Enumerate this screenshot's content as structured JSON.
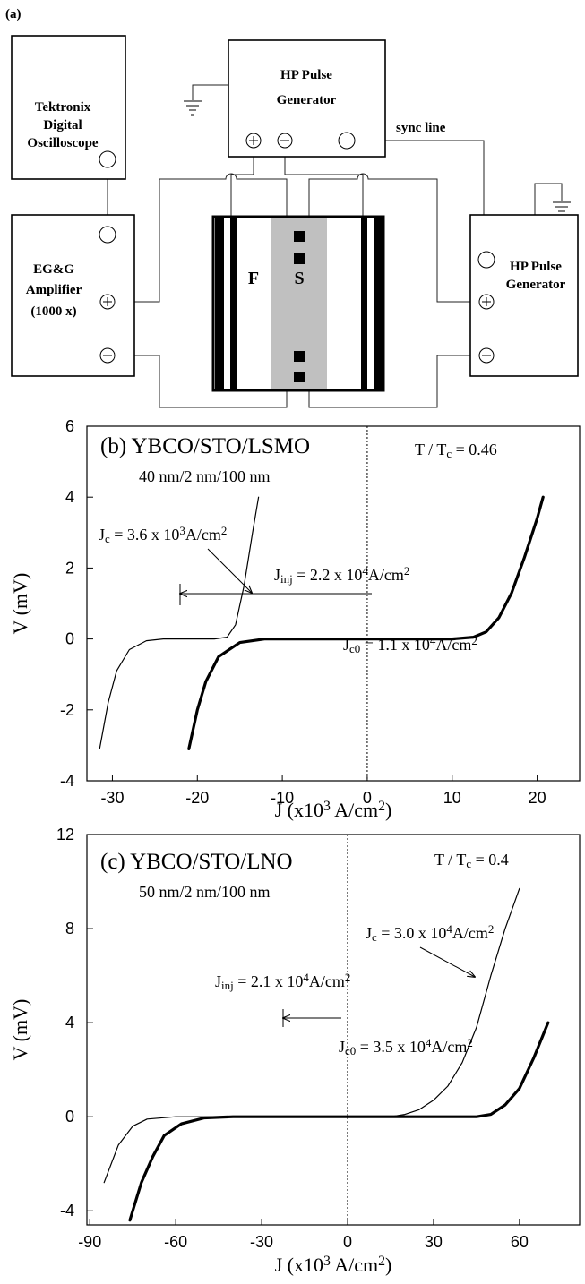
{
  "diagram": {
    "panel_label": "(a)",
    "oscilloscope": [
      "Tektronix",
      "Digital",
      "Oscilloscope"
    ],
    "pulse_generator_top": [
      "HP Pulse",
      "Generator"
    ],
    "sync_label": "sync line",
    "amplifier": [
      "EG&G",
      "Amplifier",
      "(1000 x)"
    ],
    "pulse_generator_right": [
      "HP Pulse",
      "Generator"
    ],
    "layer_f": "F",
    "layer_s": "S"
  },
  "chart_data": [
    {
      "type": "line",
      "title": "(b) YBCO/STO/LSMO",
      "subtitle": "40 nm/2 nm/100 nm",
      "ylabel": "V (mV)",
      "xlabel": {
        "parts": [
          "J (x10",
          "3",
          " A/cm",
          "2",
          ")"
        ],
        "styles": [
          "normal",
          "sup",
          "normal",
          "sup",
          "normal"
        ]
      },
      "xlim": [
        -33,
        25
      ],
      "xticks": [
        -30,
        -20,
        -10,
        0,
        10,
        20
      ],
      "ylim": [
        -4,
        6
      ],
      "yticks": [
        -4,
        -2,
        0,
        2,
        4,
        6
      ],
      "annotations": [
        {
          "parts": [
            "T / T",
            "c",
            " = 0.46"
          ],
          "styles": [
            "normal",
            "sub",
            "normal"
          ]
        },
        {
          "parts": [
            "J",
            "c",
            " = 3.6 x 10",
            "3",
            "A/cm",
            "2"
          ],
          "styles": [
            "normal",
            "sub",
            "normal",
            "sup",
            "normal",
            "sup"
          ]
        },
        {
          "parts": [
            "J",
            "inj",
            " = 2.2 x 10",
            "4",
            "A/cm",
            "2"
          ],
          "styles": [
            "normal",
            "sub",
            "normal",
            "sup",
            "normal",
            "sup"
          ]
        },
        {
          "parts": [
            "J",
            "c0",
            " = 1.1 x 10",
            "4",
            "A/cm",
            "2"
          ],
          "styles": [
            "normal",
            "sub",
            "normal",
            "sup",
            "normal",
            "sup"
          ]
        }
      ],
      "series": [
        {
          "color": "#000000",
          "line_width": 1.2,
          "x": [
            -31.5,
            -30.5,
            -29.5,
            -28,
            -26,
            -24,
            -18,
            -16.5,
            -15.5,
            -14.5,
            -13.5,
            -12.8
          ],
          "values": [
            -3.1,
            -1.8,
            -0.9,
            -0.3,
            -0.05,
            0,
            0,
            0.05,
            0.4,
            1.5,
            3,
            4
          ]
        },
        {
          "color": "#000000",
          "line_width": 3.2,
          "x": [
            -21,
            -20,
            -19,
            -17.5,
            -15,
            -12,
            10,
            12.5,
            14,
            15.5,
            17,
            18.5,
            20,
            20.7
          ],
          "values": [
            -3.1,
            -2,
            -1.2,
            -0.5,
            -0.1,
            0,
            0,
            0.05,
            0.2,
            0.6,
            1.3,
            2.3,
            3.4,
            4
          ]
        }
      ]
    },
    {
      "type": "line",
      "title": "(c) YBCO/STO/LNO",
      "subtitle": "50 nm/2 nm/100 nm",
      "ylabel": "V (mV)",
      "xlabel": {
        "parts": [
          "J (x10",
          "3",
          " A/cm",
          "2",
          ")"
        ],
        "styles": [
          "normal",
          "sup",
          "normal",
          "sup",
          "normal"
        ]
      },
      "xlim": [
        -91,
        81
      ],
      "xticks": [
        -90,
        -60,
        -30,
        0,
        30,
        60
      ],
      "ylim": [
        -4.6,
        12
      ],
      "yticks": [
        -4,
        0,
        4,
        8,
        12
      ],
      "annotations": [
        {
          "parts": [
            "T / T",
            "c",
            " = 0.4"
          ],
          "styles": [
            "normal",
            "sub",
            "normal"
          ]
        },
        {
          "parts": [
            "J",
            "c",
            " = 3.0 x 10",
            "4",
            "A/cm",
            "2"
          ],
          "styles": [
            "normal",
            "sub",
            "normal",
            "sup",
            "normal",
            "sup"
          ]
        },
        {
          "parts": [
            "J",
            "inj",
            " = 2.1 x 10",
            "4",
            "A/cm",
            "2"
          ],
          "styles": [
            "normal",
            "sub",
            "normal",
            "sup",
            "normal",
            "sup"
          ]
        },
        {
          "parts": [
            "J",
            "c0",
            " = 3.5 x 10",
            "4",
            "A/cm",
            "2"
          ],
          "styles": [
            "normal",
            "sub",
            "normal",
            "sup",
            "normal",
            "sup"
          ]
        }
      ],
      "series": [
        {
          "color": "#000000",
          "line_width": 1.2,
          "x": [
            -85,
            -80,
            -75,
            -70,
            -60,
            15,
            20,
            25,
            30,
            35,
            40,
            45,
            50,
            55,
            60
          ],
          "values": [
            -2.8,
            -1.2,
            -0.4,
            -0.1,
            0,
            0,
            0.1,
            0.3,
            0.7,
            1.3,
            2.3,
            3.8,
            6,
            8,
            9.7
          ]
        },
        {
          "color": "#000000",
          "line_width": 3.2,
          "x": [
            -76,
            -72,
            -68,
            -64,
            -58,
            -50,
            -40,
            45,
            50,
            55,
            60,
            65,
            70
          ],
          "values": [
            -4.4,
            -2.8,
            -1.7,
            -0.8,
            -0.3,
            -0.05,
            0,
            0,
            0.1,
            0.5,
            1.2,
            2.5,
            4
          ]
        }
      ]
    }
  ]
}
